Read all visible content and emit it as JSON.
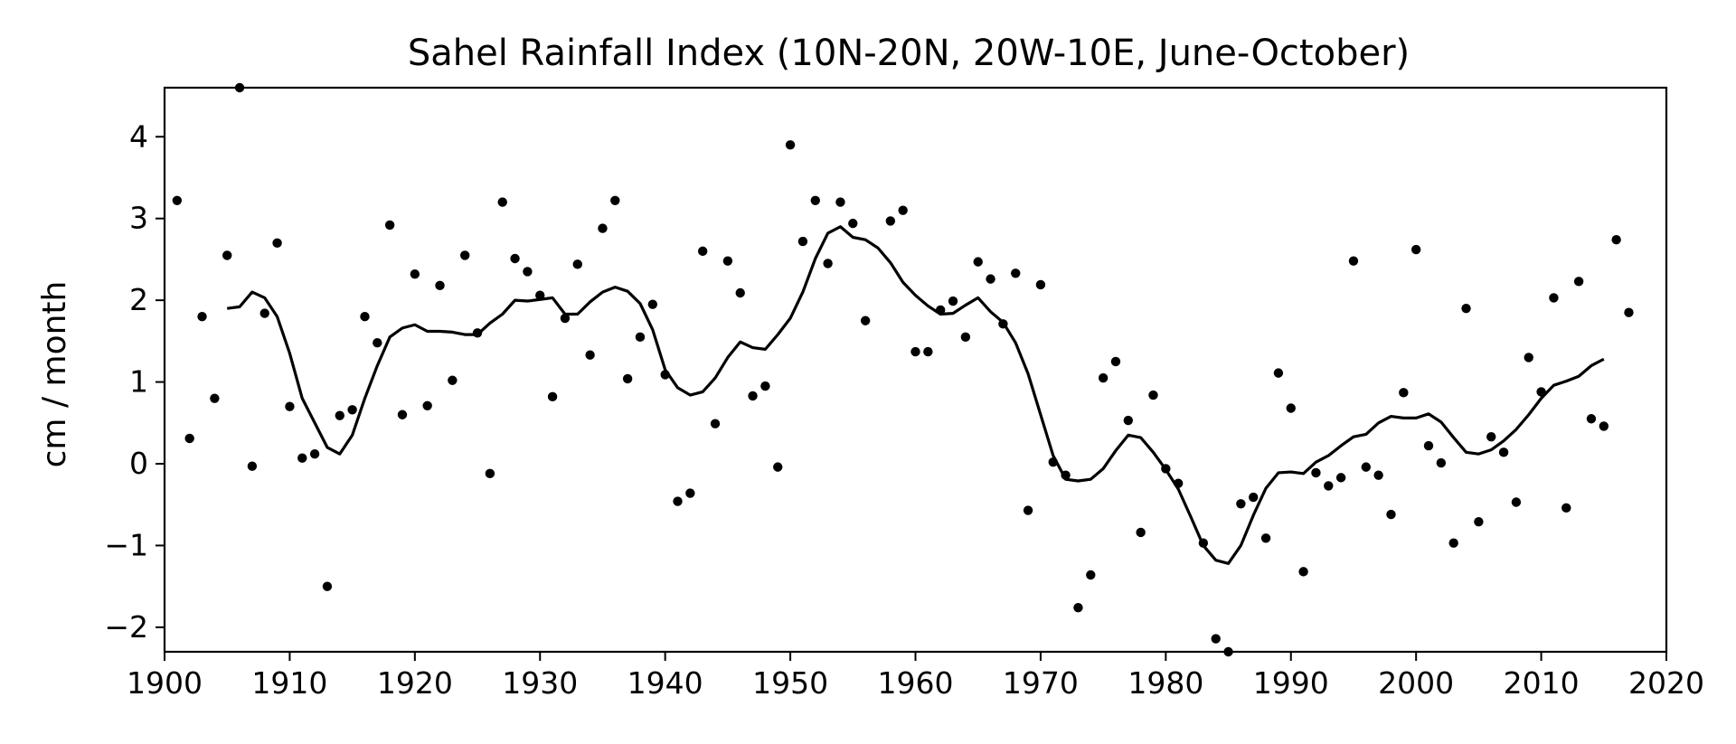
{
  "chart_data": {
    "type": "scatter",
    "title": "Sahel Rainfall Index (10N-20N, 20W-10E, June-October)",
    "xlabel": "",
    "ylabel": "cm / month",
    "xlim": [
      1900,
      2020
    ],
    "ylim": [
      -2.3,
      4.6
    ],
    "xticks": [
      1900,
      1910,
      1920,
      1930,
      1940,
      1950,
      1960,
      1970,
      1980,
      1990,
      2000,
      2010,
      2020
    ],
    "yticks": [
      -2,
      -1,
      0,
      1,
      2,
      3,
      4
    ],
    "ytick_labels": [
      "−2",
      "−1",
      "0",
      "1",
      "2",
      "3",
      "4"
    ],
    "grid": false,
    "series": [
      {
        "style": "points",
        "x": [
          1901,
          1902,
          1903,
          1904,
          1905,
          1906,
          1907,
          1908,
          1909,
          1910,
          1911,
          1912,
          1913,
          1914,
          1915,
          1916,
          1917,
          1918,
          1919,
          1920,
          1921,
          1922,
          1923,
          1924,
          1925,
          1926,
          1927,
          1928,
          1929,
          1930,
          1931,
          1932,
          1933,
          1934,
          1935,
          1936,
          1937,
          1938,
          1939,
          1940,
          1941,
          1942,
          1943,
          1944,
          1945,
          1946,
          1947,
          1948,
          1949,
          1950,
          1951,
          1952,
          1953,
          1954,
          1955,
          1956,
          1958,
          1959,
          1960,
          1961,
          1962,
          1963,
          1964,
          1965,
          1966,
          1967,
          1968,
          1969,
          1970,
          1971,
          1972,
          1973,
          1974,
          1975,
          1976,
          1977,
          1978,
          1979,
          1980,
          1981,
          1983,
          1984,
          1985,
          1986,
          1987,
          1988,
          1989,
          1990,
          1991,
          1992,
          1993,
          1994,
          1995,
          1996,
          1997,
          1998,
          1999,
          2000,
          2001,
          2002,
          2003,
          2004,
          2005,
          2006,
          2007,
          2008,
          2009,
          2010,
          2011,
          2012,
          2013,
          2014,
          2015,
          2016,
          2017
        ],
        "y": [
          3.22,
          0.31,
          1.8,
          0.8,
          2.55,
          4.6,
          -0.03,
          1.84,
          2.7,
          0.7,
          0.07,
          0.12,
          -1.5,
          0.59,
          0.66,
          1.8,
          1.48,
          2.92,
          0.6,
          2.32,
          0.71,
          2.18,
          1.02,
          2.55,
          1.6,
          -0.12,
          3.2,
          2.51,
          2.35,
          2.06,
          0.82,
          1.78,
          2.44,
          1.33,
          2.88,
          3.22,
          1.04,
          1.55,
          1.95,
          1.09,
          -0.46,
          -0.36,
          2.6,
          0.49,
          2.48,
          2.09,
          0.83,
          0.95,
          -0.04,
          3.9,
          2.72,
          3.22,
          2.45,
          3.2,
          2.94,
          1.75,
          2.97,
          3.1,
          1.37,
          1.37,
          1.88,
          1.99,
          1.55,
          2.47,
          2.26,
          1.71,
          2.33,
          -0.57,
          2.19,
          0.02,
          -0.14,
          -1.76,
          -1.36,
          1.05,
          1.25,
          0.53,
          -0.84,
          0.84,
          -0.06,
          -0.24,
          -0.97,
          -2.14,
          -2.3,
          -0.49,
          -0.41,
          -0.91,
          1.11,
          0.68,
          -1.32,
          -0.11,
          -0.27,
          -0.17,
          2.48,
          -0.04,
          -0.14,
          -0.62,
          0.87,
          2.62,
          0.22,
          0.01,
          -0.97,
          1.9,
          -0.71,
          0.33,
          0.14,
          -0.47,
          1.3,
          0.88,
          2.03,
          -0.54,
          2.23,
          0.55,
          0.46,
          2.74,
          1.85
        ]
      },
      {
        "style": "line",
        "x": [
          1905,
          1906,
          1907,
          1908,
          1909,
          1910,
          1911,
          1912,
          1913,
          1914,
          1915,
          1916,
          1917,
          1918,
          1919,
          1920,
          1921,
          1922,
          1923,
          1924,
          1925,
          1926,
          1927,
          1928,
          1929,
          1930,
          1931,
          1932,
          1933,
          1934,
          1935,
          1936,
          1937,
          1938,
          1939,
          1940,
          1941,
          1942,
          1943,
          1944,
          1945,
          1946,
          1947,
          1948,
          1949,
          1950,
          1951,
          1952,
          1953,
          1954,
          1955,
          1956,
          1957,
          1958,
          1959,
          1960,
          1961,
          1962,
          1963,
          1964,
          1965,
          1966,
          1967,
          1968,
          1969,
          1970,
          1971,
          1972,
          1973,
          1974,
          1975,
          1976,
          1977,
          1978,
          1979,
          1980,
          1981,
          1982,
          1983,
          1984,
          1985,
          1986,
          1987,
          1988,
          1989,
          1990,
          1991,
          1992,
          1993,
          1994,
          1995,
          1996,
          1997,
          1998,
          1999,
          2000,
          2001,
          2002,
          2003,
          2004,
          2005,
          2006,
          2007,
          2008,
          2009,
          2010,
          2011,
          2012,
          2013,
          2014,
          2015
        ],
        "y": [
          1.9,
          1.92,
          2.1,
          2.03,
          1.8,
          1.35,
          0.8,
          0.5,
          0.2,
          0.12,
          0.35,
          0.8,
          1.2,
          1.55,
          1.66,
          1.7,
          1.62,
          1.62,
          1.61,
          1.58,
          1.58,
          1.72,
          1.83,
          2.0,
          1.99,
          2.01,
          2.03,
          1.83,
          1.83,
          1.98,
          2.1,
          2.16,
          2.11,
          1.96,
          1.64,
          1.15,
          0.93,
          0.84,
          0.88,
          1.05,
          1.3,
          1.49,
          1.42,
          1.4,
          1.58,
          1.78,
          2.1,
          2.51,
          2.82,
          2.9,
          2.77,
          2.74,
          2.64,
          2.46,
          2.22,
          2.06,
          1.93,
          1.83,
          1.84,
          1.94,
          2.03,
          1.86,
          1.73,
          1.48,
          1.1,
          0.6,
          0.1,
          -0.19,
          -0.21,
          -0.19,
          -0.06,
          0.16,
          0.35,
          0.32,
          0.14,
          -0.07,
          -0.31,
          -0.65,
          -1.0,
          -1.18,
          -1.22,
          -1.0,
          -0.63,
          -0.3,
          -0.11,
          -0.1,
          -0.12,
          0.02,
          0.1,
          0.22,
          0.33,
          0.36,
          0.5,
          0.58,
          0.56,
          0.56,
          0.61,
          0.51,
          0.32,
          0.14,
          0.12,
          0.17,
          0.28,
          0.42,
          0.6,
          0.8,
          0.96,
          1.01,
          1.07,
          1.2,
          1.28
        ]
      }
    ]
  }
}
